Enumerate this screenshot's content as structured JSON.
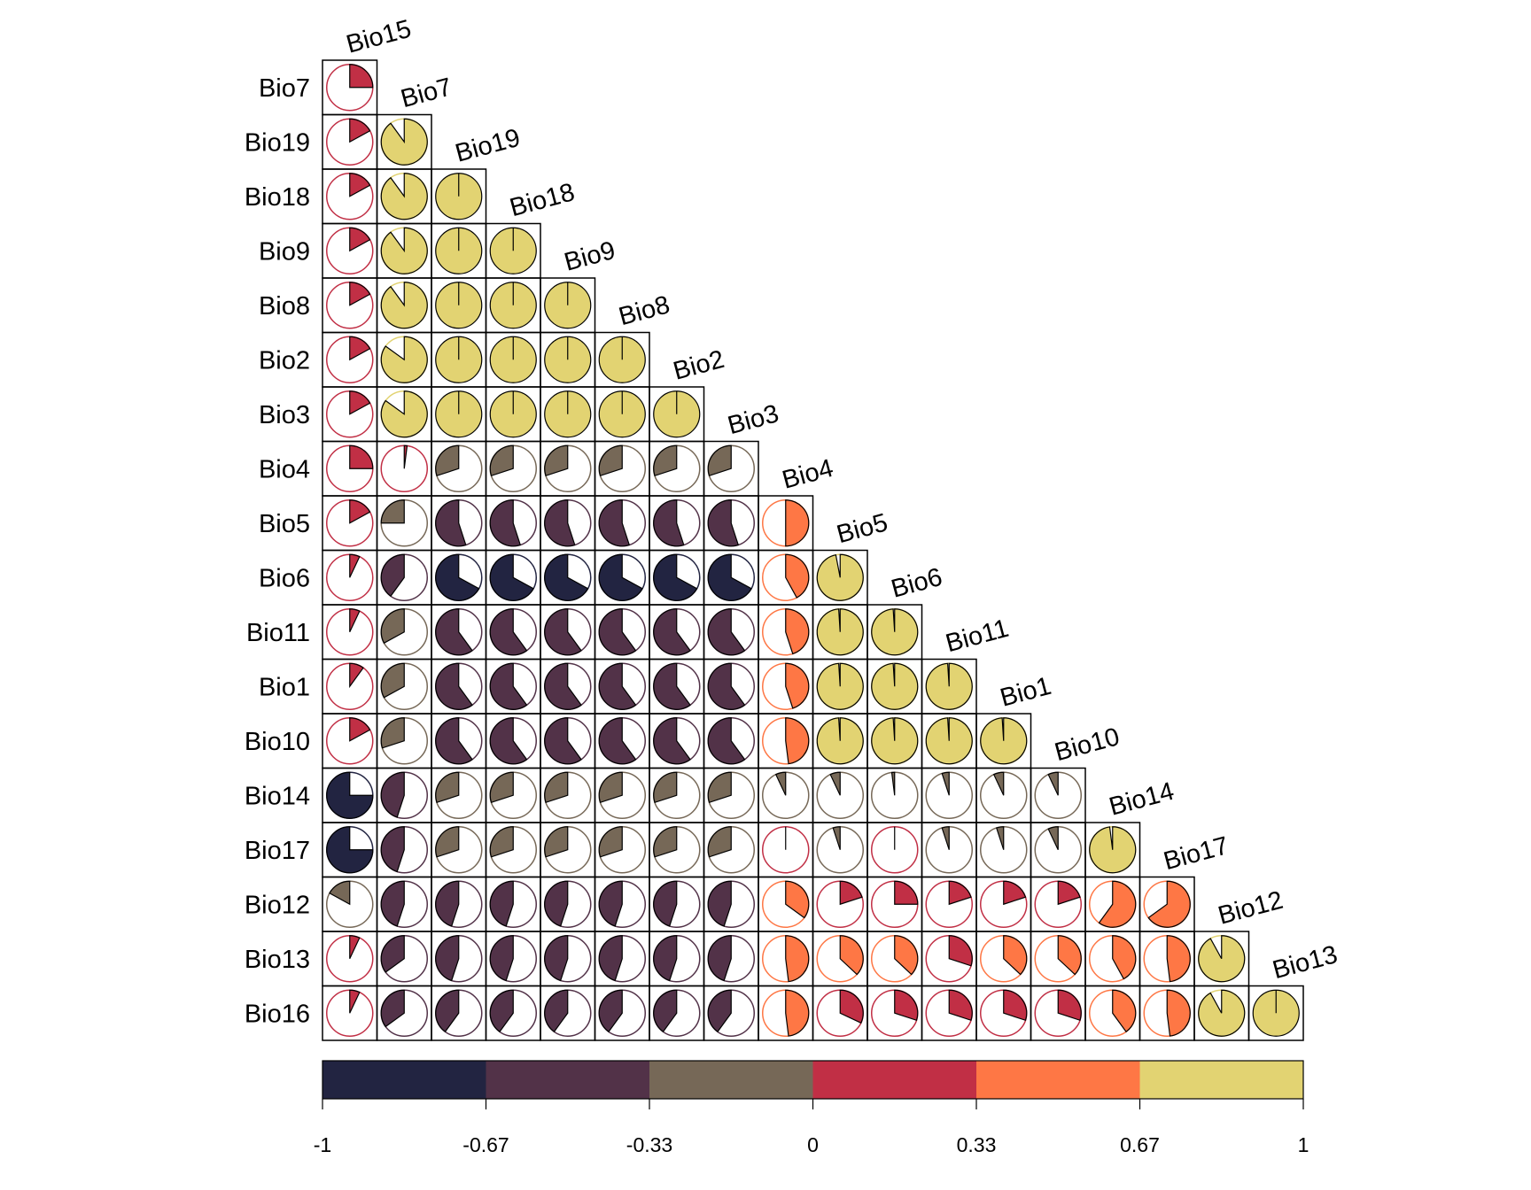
{
  "chart_data": {
    "type": "heatmap",
    "subtype": "correlation-pie-lower-triangle",
    "row_labels": [
      "Bio7",
      "Bio19",
      "Bio18",
      "Bio9",
      "Bio8",
      "Bio2",
      "Bio3",
      "Bio4",
      "Bio5",
      "Bio6",
      "Bio11",
      "Bio1",
      "Bio10",
      "Bio14",
      "Bio17",
      "Bio12",
      "Bio13",
      "Bio16"
    ],
    "col_labels": [
      "Bio15",
      "Bio7",
      "Bio19",
      "Bio18",
      "Bio9",
      "Bio8",
      "Bio2",
      "Bio3",
      "Bio4",
      "Bio5",
      "Bio6",
      "Bio11",
      "Bio1",
      "Bio10",
      "Bio14",
      "Bio17",
      "Bio12",
      "Bio13"
    ],
    "values": [
      [
        0.25
      ],
      [
        0.17,
        0.9
      ],
      [
        0.17,
        0.9,
        1.0
      ],
      [
        0.17,
        0.9,
        1.0,
        1.0
      ],
      [
        0.17,
        0.9,
        1.0,
        1.0,
        1.0
      ],
      [
        0.17,
        0.85,
        1.0,
        1.0,
        1.0,
        1.0
      ],
      [
        0.17,
        0.85,
        1.0,
        1.0,
        1.0,
        1.0,
        1.0
      ],
      [
        0.25,
        0.02,
        -0.3,
        -0.3,
        -0.3,
        -0.3,
        -0.3,
        -0.3
      ],
      [
        0.17,
        -0.25,
        -0.55,
        -0.55,
        -0.55,
        -0.55,
        -0.55,
        -0.55,
        0.5
      ],
      [
        0.07,
        -0.4,
        -0.67,
        -0.67,
        -0.67,
        -0.67,
        -0.67,
        -0.67,
        0.42,
        0.97
      ],
      [
        0.07,
        -0.33,
        -0.6,
        -0.6,
        -0.6,
        -0.6,
        -0.6,
        -0.6,
        0.45,
        0.99,
        0.99
      ],
      [
        0.1,
        -0.33,
        -0.6,
        -0.6,
        -0.6,
        -0.6,
        -0.6,
        -0.6,
        0.45,
        0.99,
        0.99,
        0.99
      ],
      [
        0.17,
        -0.3,
        -0.6,
        -0.6,
        -0.6,
        -0.6,
        -0.6,
        -0.6,
        0.48,
        0.99,
        0.99,
        0.99,
        0.99
      ],
      [
        -0.75,
        -0.45,
        -0.3,
        -0.3,
        -0.3,
        -0.3,
        -0.3,
        -0.3,
        -0.07,
        -0.07,
        -0.02,
        -0.05,
        -0.07,
        -0.07
      ],
      [
        -0.75,
        -0.45,
        -0.3,
        -0.3,
        -0.3,
        -0.3,
        -0.3,
        -0.3,
        0.0,
        -0.05,
        0.0,
        -0.05,
        -0.05,
        -0.07,
        0.98
      ],
      [
        -0.17,
        -0.45,
        -0.45,
        -0.45,
        -0.45,
        -0.45,
        -0.45,
        -0.45,
        0.35,
        0.2,
        0.25,
        0.2,
        0.2,
        0.2,
        0.6,
        0.65
      ],
      [
        0.07,
        -0.35,
        -0.45,
        -0.45,
        -0.45,
        -0.45,
        -0.45,
        -0.45,
        0.48,
        0.37,
        0.37,
        0.3,
        0.37,
        0.37,
        0.42,
        0.48,
        0.92
      ],
      [
        0.07,
        -0.35,
        -0.4,
        -0.4,
        -0.4,
        -0.4,
        -0.4,
        -0.4,
        0.48,
        0.32,
        0.3,
        0.3,
        0.3,
        0.3,
        0.4,
        0.48,
        0.92,
        1.0
      ]
    ],
    "colorbar": {
      "ticks": [
        "-1",
        "-0.67",
        "-0.33",
        "0",
        "0.33",
        "0.67",
        "1"
      ],
      "colors": [
        "#222441",
        "#523248",
        "#766857",
        "#c12f45",
        "#fe7745",
        "#e2d372"
      ]
    }
  }
}
